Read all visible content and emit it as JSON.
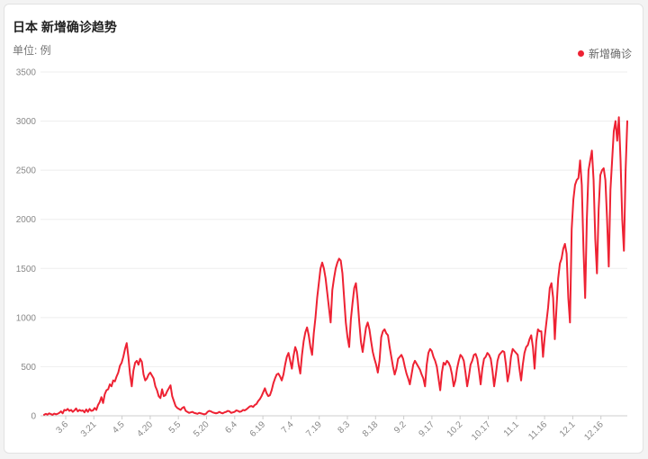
{
  "title": "日本 新增确诊趋势",
  "unit_label": "单位: 例",
  "legend": "新增确诊",
  "colors": {
    "line": "#ee2233",
    "grid": "#eeeeee",
    "axis": "#cccccc"
  },
  "chart_data": {
    "type": "line",
    "title": "日本 新增确诊趋势",
    "ylabel": "单位: 例",
    "ylim": [
      0,
      3500
    ],
    "yticks": [
      0,
      500,
      1000,
      1500,
      2000,
      2500,
      3000,
      3500
    ],
    "xticks": [
      "3.6",
      "3.21",
      "4.5",
      "4.20",
      "5.5",
      "5.20",
      "6.4",
      "6.19",
      "7.4",
      "7.19",
      "8.3",
      "8.18",
      "9.2",
      "9.17",
      "10.2",
      "10.17",
      "11.1",
      "11.16",
      "12.1",
      "12.16"
    ],
    "grid": true,
    "legend_position": "top-right",
    "series": [
      {
        "name": "新增确诊",
        "x_start": "2.20",
        "x_end": "12.17",
        "values": [
          10,
          20,
          12,
          25,
          18,
          10,
          22,
          15,
          20,
          30,
          45,
          25,
          60,
          55,
          70,
          50,
          60,
          40,
          55,
          75,
          45,
          60,
          50,
          55,
          35,
          65,
          40,
          70,
          50,
          55,
          80,
          60,
          110,
          140,
          190,
          130,
          220,
          260,
          270,
          320,
          300,
          360,
          350,
          400,
          440,
          510,
          540,
          600,
          680,
          740,
          600,
          420,
          300,
          460,
          540,
          560,
          520,
          580,
          550,
          420,
          360,
          380,
          420,
          440,
          410,
          380,
          300,
          260,
          200,
          180,
          270,
          200,
          210,
          250,
          280,
          310,
          200,
          150,
          100,
          80,
          70,
          60,
          80,
          90,
          50,
          40,
          30,
          35,
          40,
          30,
          25,
          20,
          30,
          25,
          20,
          15,
          20,
          40,
          50,
          45,
          35,
          30,
          25,
          30,
          40,
          30,
          25,
          35,
          40,
          50,
          45,
          30,
          35,
          40,
          55,
          50,
          40,
          45,
          60,
          55,
          65,
          80,
          95,
          100,
          90,
          110,
          120,
          150,
          170,
          200,
          240,
          280,
          230,
          200,
          210,
          260,
          330,
          380,
          420,
          430,
          400,
          360,
          420,
          520,
          600,
          640,
          560,
          480,
          610,
          700,
          650,
          520,
          430,
          620,
          760,
          850,
          900,
          820,
          700,
          620,
          840,
          1000,
          1200,
          1350,
          1500,
          1560,
          1500,
          1400,
          1250,
          1100,
          950,
          1280,
          1400,
          1500,
          1560,
          1600,
          1580,
          1450,
          1200,
          950,
          800,
          700,
          980,
          1150,
          1300,
          1350,
          1180,
          950,
          750,
          650,
          780,
          900,
          950,
          880,
          760,
          650,
          580,
          520,
          440,
          560,
          800,
          860,
          880,
          840,
          820,
          700,
          600,
          500,
          420,
          480,
          580,
          600,
          620,
          580,
          500,
          430,
          380,
          320,
          420,
          520,
          560,
          530,
          500,
          470,
          420,
          380,
          300,
          520,
          640,
          680,
          660,
          600,
          560,
          500,
          380,
          260,
          440,
          540,
          520,
          560,
          540,
          500,
          420,
          300,
          360,
          480,
          560,
          620,
          600,
          560,
          440,
          300,
          400,
          520,
          560,
          620,
          630,
          580,
          460,
          320,
          480,
          580,
          600,
          640,
          620,
          580,
          460,
          300,
          420,
          560,
          620,
          640,
          660,
          650,
          520,
          350,
          440,
          600,
          680,
          660,
          640,
          620,
          480,
          360,
          520,
          640,
          700,
          720,
          780,
          820,
          700,
          480,
          760,
          880,
          860,
          860,
          600,
          800,
          950,
          1100,
          1300,
          1350,
          1200,
          780,
          1100,
          1400,
          1550,
          1600,
          1700,
          1750,
          1650,
          1200,
          950,
          1900,
          2200,
          2350,
          2400,
          2420,
          2600,
          2350,
          1700,
          1200,
          2000,
          2500,
          2600,
          2700,
          2400,
          1800,
          1450,
          2100,
          2450,
          2500,
          2520,
          2400,
          2000,
          1520,
          2300,
          2600,
          2900,
          3000,
          2800,
          3040,
          2600,
          2000,
          1680,
          2500,
          3000
        ]
      }
    ]
  }
}
